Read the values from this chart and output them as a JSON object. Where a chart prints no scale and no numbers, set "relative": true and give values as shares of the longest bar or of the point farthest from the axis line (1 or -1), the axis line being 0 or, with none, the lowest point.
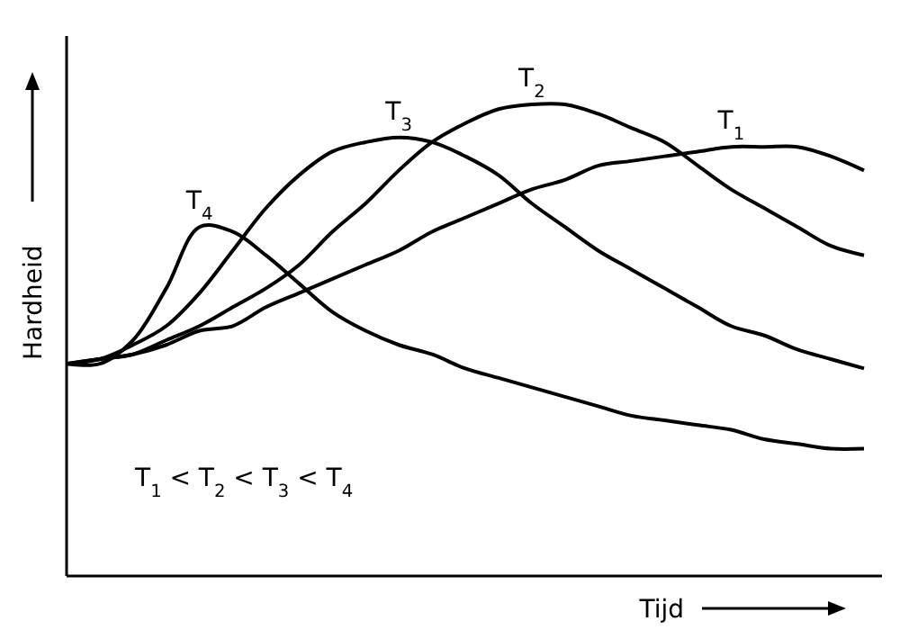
{
  "chart_data": {
    "type": "line",
    "relative": true,
    "xlabel": "Tijd",
    "ylabel": "Hardheid",
    "line_style": "solid",
    "categories": [
      null,
      null,
      null,
      null,
      null,
      null,
      null,
      null,
      null,
      null,
      null,
      null,
      null,
      null,
      null,
      null,
      null,
      null,
      null,
      null,
      null,
      null,
      null,
      null,
      null
    ],
    "series": [
      {
        "name": "T$_{1}$",
        "color": "#000000",
        "values": [
          0.45,
          0.46,
          0.47,
          0.49,
          0.52,
          0.53,
          0.57,
          0.6,
          0.63,
          0.66,
          0.69,
          0.73,
          0.76,
          0.79,
          0.82,
          0.84,
          0.87,
          0.88,
          0.89,
          0.9,
          0.91,
          0.91,
          0.91,
          0.89,
          0.86
        ]
      },
      {
        "name": "T$_{2}$",
        "color": "#000000",
        "values": [
          0.45,
          0.46,
          0.47,
          0.5,
          0.53,
          0.57,
          0.61,
          0.66,
          0.73,
          0.79,
          0.86,
          0.92,
          0.96,
          0.99,
          1,
          1,
          0.98,
          0.95,
          0.92,
          0.87,
          0.82,
          0.78,
          0.74,
          0.7,
          0.68
        ]
      },
      {
        "name": "T$_{3}$",
        "color": "#000000",
        "values": [
          0.45,
          0.46,
          0.49,
          0.53,
          0.6,
          0.69,
          0.78,
          0.85,
          0.9,
          0.92,
          0.93,
          0.92,
          0.89,
          0.85,
          0.79,
          0.74,
          0.69,
          0.65,
          0.61,
          0.57,
          0.53,
          0.51,
          0.48,
          0.46,
          0.44
        ]
      },
      {
        "name": "T$_{4}$",
        "color": "#000000",
        "values": [
          0.45,
          0.45,
          0.5,
          0.61,
          0.74,
          0.73,
          0.68,
          0.62,
          0.56,
          0.52,
          0.49,
          0.47,
          0.44,
          0.42,
          0.4,
          0.38,
          0.36,
          0.34,
          0.33,
          0.32,
          0.31,
          0.29,
          0.28,
          0.27,
          0.27
        ]
      }
    ],
    "annotations": [
      "T$_{1}$ < T$_{2}$ < T$_{3}$ < T$_{4}$"
    ]
  }
}
